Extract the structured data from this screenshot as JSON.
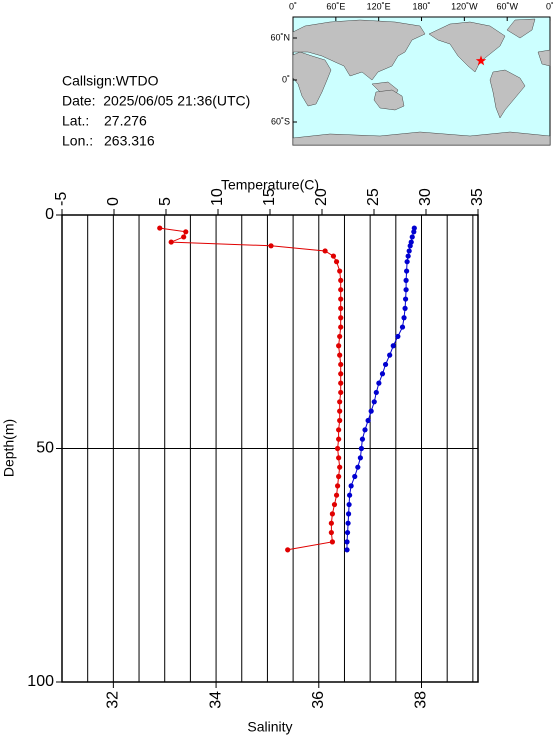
{
  "info": {
    "callsign": "Callsign:WTDO",
    "date": "Date:  2025/06/05 21:36(UTC)",
    "lat_label": "Lat.:",
    "lat": 27.276,
    "lon_label": "Lon.:",
    "lon": 263.316
  },
  "map": {
    "lon_ticks": [
      {
        "value": 0,
        "label": "0˚"
      },
      {
        "value": 60,
        "label": "60˚E"
      },
      {
        "value": 120,
        "label": "120˚E"
      },
      {
        "value": 180,
        "label": "180˚"
      },
      {
        "value": 240,
        "label": "120˚W"
      },
      {
        "value": 300,
        "label": "60˚W"
      },
      {
        "value": 360,
        "label": "0˚"
      }
    ],
    "lat_ticks": [
      {
        "value": 60,
        "label": "60˚N"
      },
      {
        "value": 0,
        "label": "0˚"
      },
      {
        "value": -60,
        "label": "60˚S"
      }
    ]
  },
  "chart_data": {
    "type": "line",
    "ylabel": "Depth(m)",
    "ylim": [
      0,
      100
    ],
    "yticks": [
      0,
      50,
      100
    ],
    "depth": [
      2.8,
      3.6,
      4.7,
      5.8,
      6.6,
      7.7,
      8.8,
      10,
      12,
      14,
      16,
      18,
      20,
      22,
      24,
      26,
      28,
      30,
      32,
      34,
      36,
      38,
      40,
      42,
      44,
      46,
      48,
      50,
      52,
      54,
      56,
      58,
      60,
      62,
      64,
      66,
      68,
      70,
      71.7
    ],
    "grid_x": [
      31.5,
      32,
      32.5,
      33,
      33.5,
      34,
      34.5,
      35,
      35.5,
      36,
      36.5,
      37,
      37.5,
      38,
      38.5,
      39
    ],
    "series": [
      {
        "name": "Temperature(C)",
        "color": "#e00000",
        "axis": "top",
        "xlim": [
          -5,
          35
        ],
        "xticks": [
          -5,
          0,
          5,
          10,
          15,
          20,
          25,
          30,
          35
        ],
        "values": [
          4.4,
          6.9,
          6.7,
          5.5,
          15.1,
          20.3,
          21.1,
          21.4,
          21.7,
          21.8,
          21.8,
          21.8,
          21.8,
          21.8,
          21.8,
          21.7,
          21.6,
          21.7,
          21.8,
          21.8,
          21.8,
          21.8,
          21.7,
          21.7,
          21.7,
          21.6,
          21.6,
          21.5,
          21.6,
          21.7,
          21.6,
          21.5,
          21.4,
          21.2,
          21.0,
          20.9,
          20.9,
          21.0,
          16.7
        ]
      },
      {
        "name": "Salinity",
        "color": "#0000d0",
        "axis": "bottom",
        "xlim": [
          31,
          39.1
        ],
        "xticks": [
          32,
          34,
          36,
          38
        ],
        "values": [
          37.86,
          37.85,
          37.82,
          37.8,
          37.78,
          37.76,
          37.74,
          37.72,
          37.71,
          37.7,
          37.7,
          37.69,
          37.68,
          37.66,
          37.63,
          37.54,
          37.45,
          37.38,
          37.3,
          37.24,
          37.17,
          37.12,
          37.08,
          37.02,
          36.96,
          36.9,
          36.85,
          36.83,
          36.81,
          36.76,
          36.7,
          36.63,
          36.6,
          36.59,
          36.58,
          36.57,
          36.56,
          36.55,
          36.55
        ]
      }
    ]
  }
}
